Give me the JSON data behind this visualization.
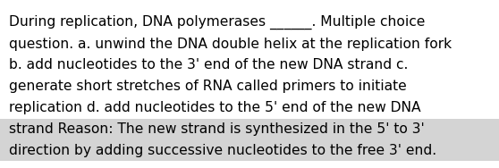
{
  "background_color": "#ffffff",
  "highlight_color": "#d4d4d4",
  "text_color": "#000000",
  "lines": [
    "During replication, DNA polymerases ______. Multiple choice",
    "question. a. unwind the DNA double helix at the replication fork",
    "b. add nucleotides to the 3' end of the new DNA strand c.",
    "generate short stretches of RNA called primers to initiate",
    "replication d. add nucleotides to the 5' end of the new DNA",
    "strand Reason: The new strand is synthesized in the 5' to 3'",
    "direction by adding successive nucleotides to the free 3' end."
  ],
  "highlight_lines": [
    5,
    6
  ],
  "font_size": 11.2,
  "font_family": "DejaVu Sans",
  "figsize": [
    5.58,
    1.88
  ],
  "dpi": 100
}
